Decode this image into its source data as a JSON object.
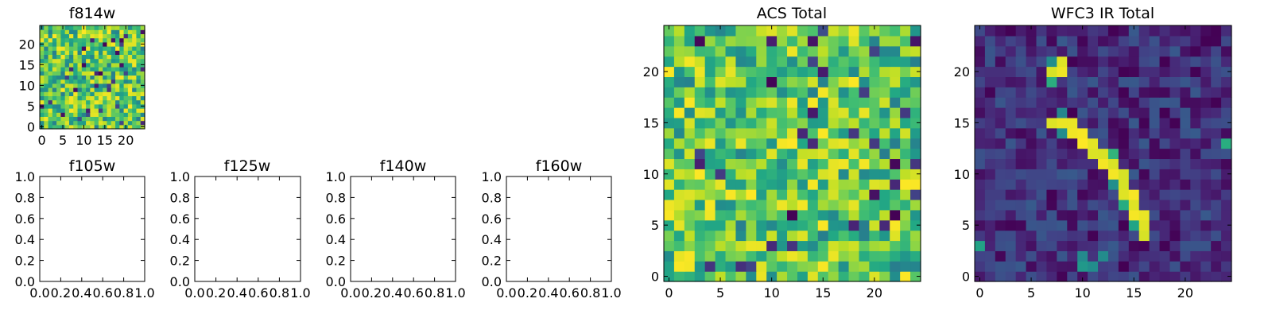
{
  "figure": {
    "background": "#ffffff"
  },
  "chart_data": [
    {
      "type": "heatmap",
      "title": "f814w",
      "colormap": "viridis",
      "grid_size": 25,
      "xlim": [
        -0.5,
        24.5
      ],
      "ylim": [
        -0.5,
        24.5
      ],
      "xticks": [
        0,
        5,
        10,
        15,
        20
      ],
      "yticks": [
        0,
        5,
        10,
        15,
        20
      ],
      "pattern": "noise",
      "seed": 814
    },
    {
      "type": "heatmap",
      "title": "f105w",
      "empty": true,
      "xlim": [
        0,
        1
      ],
      "ylim": [
        0,
        1
      ],
      "xticks": [
        0.0,
        0.2,
        0.4,
        0.6,
        0.8,
        1.0
      ],
      "yticks": [
        0.0,
        0.2,
        0.4,
        0.6,
        0.8,
        1.0
      ]
    },
    {
      "type": "heatmap",
      "title": "f125w",
      "empty": true,
      "xlim": [
        0,
        1
      ],
      "ylim": [
        0,
        1
      ],
      "xticks": [
        0.0,
        0.2,
        0.4,
        0.6,
        0.8,
        1.0
      ],
      "yticks": [
        0.0,
        0.2,
        0.4,
        0.6,
        0.8,
        1.0
      ]
    },
    {
      "type": "heatmap",
      "title": "f140w",
      "empty": true,
      "xlim": [
        0,
        1
      ],
      "ylim": [
        0,
        1
      ],
      "xticks": [
        0.0,
        0.2,
        0.4,
        0.6,
        0.8,
        1.0
      ],
      "yticks": [
        0.0,
        0.2,
        0.4,
        0.6,
        0.8,
        1.0
      ]
    },
    {
      "type": "heatmap",
      "title": "f160w",
      "empty": true,
      "xlim": [
        0,
        1
      ],
      "ylim": [
        0,
        1
      ],
      "xticks": [
        0.0,
        0.2,
        0.4,
        0.6,
        0.8,
        1.0
      ],
      "yticks": [
        0.0,
        0.2,
        0.4,
        0.6,
        0.8,
        1.0
      ]
    },
    {
      "type": "heatmap",
      "title": "ACS Total",
      "colormap": "viridis",
      "grid_size": 25,
      "xlim": [
        -0.5,
        24.5
      ],
      "ylim": [
        -0.5,
        24.5
      ],
      "xticks": [
        0,
        5,
        10,
        15,
        20
      ],
      "yticks": [
        0,
        5,
        10,
        15,
        20
      ],
      "pattern": "noise",
      "seed": 1234
    },
    {
      "type": "heatmap",
      "title": "WFC3 IR Total",
      "colormap": "viridis",
      "grid_size": 25,
      "xlim": [
        -0.5,
        24.5
      ],
      "ylim": [
        -0.5,
        24.5
      ],
      "xticks": [
        0,
        5,
        10,
        15,
        20
      ],
      "yticks": [
        0,
        5,
        10,
        15,
        20
      ],
      "pattern": "arc",
      "seed": 3,
      "bright_cells": [
        [
          20,
          7
        ],
        [
          20,
          8
        ],
        [
          21,
          8
        ],
        [
          15,
          7
        ],
        [
          15,
          8
        ],
        [
          15,
          9
        ],
        [
          14,
          9
        ],
        [
          14,
          10
        ],
        [
          13,
          10
        ],
        [
          13,
          11
        ],
        [
          12,
          11
        ],
        [
          12,
          12
        ],
        [
          11,
          12
        ],
        [
          11,
          13
        ],
        [
          10,
          13
        ],
        [
          10,
          14
        ],
        [
          9,
          14
        ],
        [
          8,
          14
        ],
        [
          8,
          15
        ],
        [
          7,
          15
        ],
        [
          6,
          15
        ],
        [
          6,
          16
        ],
        [
          5,
          16
        ],
        [
          4,
          16
        ]
      ],
      "medium_cells": [
        [
          16,
          8
        ],
        [
          21,
          7
        ],
        [
          19,
          7
        ],
        [
          14,
          8
        ],
        [
          12,
          13
        ],
        [
          9,
          13
        ],
        [
          7,
          14
        ],
        [
          5,
          15
        ],
        [
          2,
          10
        ],
        [
          2,
          12
        ],
        [
          1,
          10
        ],
        [
          1,
          11
        ],
        [
          3,
          0
        ],
        [
          13,
          24
        ]
      ]
    }
  ]
}
